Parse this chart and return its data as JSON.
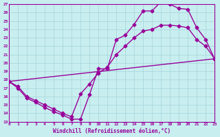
{
  "xlabel": "Windchill (Refroidissement éolien,°C)",
  "xlim": [
    0,
    23
  ],
  "ylim": [
    13,
    27
  ],
  "xticks": [
    0,
    1,
    2,
    3,
    4,
    5,
    6,
    7,
    8,
    9,
    10,
    11,
    12,
    13,
    14,
    15,
    16,
    17,
    18,
    19,
    20,
    21,
    22,
    23
  ],
  "yticks": [
    13,
    14,
    15,
    16,
    17,
    18,
    19,
    20,
    21,
    22,
    23,
    24,
    25,
    26,
    27
  ],
  "bg_color": "#c8eef0",
  "grid_color": "#aad8dc",
  "line_color": "#990099",
  "marker": "D",
  "markersize": 2.5,
  "linewidth": 1.0,
  "line1_x": [
    0,
    1,
    2,
    3,
    4,
    5,
    6,
    7,
    8,
    9,
    10,
    11,
    12,
    13,
    14,
    15,
    16,
    17,
    18,
    19,
    20,
    21,
    22,
    23
  ],
  "line1_y": [
    17.8,
    17.0,
    15.8,
    15.3,
    14.7,
    14.2,
    13.8,
    13.3,
    13.3,
    16.2,
    19.3,
    19.3,
    22.8,
    23.3,
    24.6,
    26.2,
    26.2,
    27.3,
    27.0,
    26.5,
    26.4,
    24.2,
    22.8,
    20.5
  ],
  "line2_x": [
    0,
    1,
    2,
    3,
    4,
    5,
    6,
    7,
    8,
    9,
    10,
    11,
    12,
    13,
    14,
    15,
    16,
    17,
    18,
    19,
    20,
    21,
    22,
    23
  ],
  "line2_y": [
    17.8,
    17.2,
    16.0,
    15.5,
    15.0,
    14.5,
    14.0,
    13.6,
    16.3,
    17.5,
    18.8,
    19.5,
    21.0,
    22.0,
    23.0,
    23.8,
    24.0,
    24.5,
    24.5,
    24.4,
    24.2,
    22.8,
    22.0,
    20.5
  ],
  "line3_x": [
    0,
    23
  ],
  "line3_y": [
    17.8,
    20.5
  ]
}
